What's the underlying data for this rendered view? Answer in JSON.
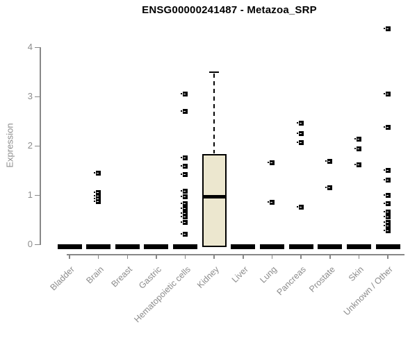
{
  "chart_data": {
    "type": "boxplot",
    "title": "ENSG00000241487 - Metazoa_SRP",
    "ylabel": "Expression",
    "xlabel": "",
    "ylim": [
      0,
      4.4
    ],
    "yticks": [
      0,
      1,
      2,
      3,
      4
    ],
    "grid": false,
    "legend": "none",
    "box_fill_color": "#ece7cf",
    "axis_color": "#878787",
    "text_color": "#8c8c8c",
    "categories": [
      "Bladder",
      "Brain",
      "Breast",
      "Gastric",
      "Hematopoietic cells",
      "Kidney",
      "Liver",
      "Lung",
      "Pancreas",
      "Prostate",
      "Skin",
      "Unknown / Other"
    ],
    "boxes": [
      {
        "category": "Bladder",
        "q1": 0,
        "median": 0,
        "q3": 0,
        "whisker_low": 0,
        "whisker_high": 0,
        "outliers": []
      },
      {
        "category": "Brain",
        "q1": 0,
        "median": 0,
        "q3": 0,
        "whisker_low": 0,
        "whisker_high": 0,
        "outliers": [
          1.44,
          1.05,
          0.98,
          0.92,
          0.87
        ]
      },
      {
        "category": "Breast",
        "q1": 0,
        "median": 0,
        "q3": 0,
        "whisker_low": 0,
        "whisker_high": 0,
        "outliers": []
      },
      {
        "category": "Gastric",
        "q1": 0,
        "median": 0,
        "q3": 0,
        "whisker_low": 0,
        "whisker_high": 0,
        "outliers": []
      },
      {
        "category": "Hematopoietic cells",
        "q1": 0,
        "median": 0,
        "q3": 0,
        "whisker_low": 0,
        "whisker_high": 0,
        "outliers": [
          3.05,
          2.7,
          1.76,
          1.58,
          1.41,
          1.08,
          0.97,
          0.83,
          0.73,
          0.63,
          0.55,
          0.45,
          0.2
        ]
      },
      {
        "category": "Kidney",
        "q1": 0,
        "median": 0.97,
        "q3": 1.83,
        "whisker_low": 0,
        "whisker_high": 3.5,
        "outliers": []
      },
      {
        "category": "Liver",
        "q1": 0,
        "median": 0,
        "q3": 0,
        "whisker_low": 0,
        "whisker_high": 0,
        "outliers": []
      },
      {
        "category": "Lung",
        "q1": 0,
        "median": 0,
        "q3": 0,
        "whisker_low": 0,
        "whisker_high": 0,
        "outliers": [
          1.65,
          0.85
        ]
      },
      {
        "category": "Pancreas",
        "q1": 0,
        "median": 0,
        "q3": 0,
        "whisker_low": 0,
        "whisker_high": 0,
        "outliers": [
          2.46,
          2.24,
          2.06,
          0.76
        ]
      },
      {
        "category": "Prostate",
        "q1": 0,
        "median": 0,
        "q3": 0,
        "whisker_low": 0,
        "whisker_high": 0,
        "outliers": [
          1.69,
          1.15
        ]
      },
      {
        "category": "Skin",
        "q1": 0,
        "median": 0,
        "q3": 0,
        "whisker_low": 0,
        "whisker_high": 0,
        "outliers": [
          2.14,
          1.93,
          1.61
        ]
      },
      {
        "category": "Unknown / Other",
        "q1": 0,
        "median": 0,
        "q3": 0,
        "whisker_low": 0,
        "whisker_high": 0,
        "outliers": [
          4.37,
          3.05,
          2.38,
          1.5,
          1.3,
          0.99,
          0.83,
          0.66,
          0.55,
          0.45,
          0.37,
          0.28
        ]
      }
    ]
  }
}
